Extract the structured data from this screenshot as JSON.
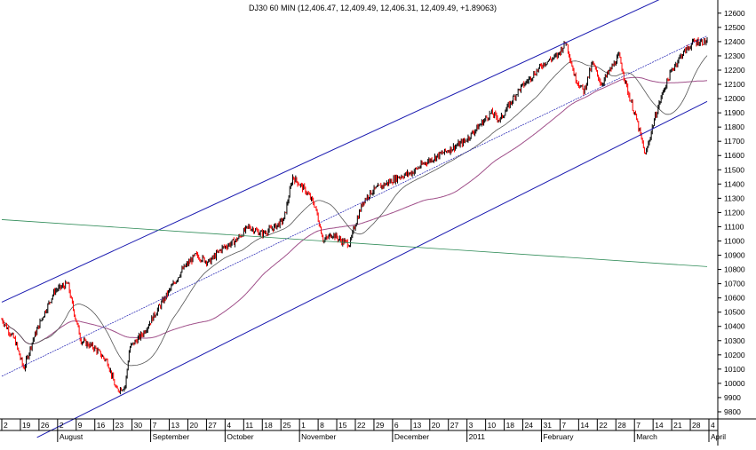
{
  "chart_data": {
    "type": "line",
    "subtype": "candlestick-price-with-channel",
    "title": "DJ30 60 MIN (12,406.47, 12,409.49, 12,406.31, 12,409.49, +1.89063)",
    "ylim": [
      9750,
      12680
    ],
    "y_ticks": [
      9800,
      9900,
      10000,
      10100,
      10200,
      10300,
      10400,
      10500,
      10600,
      10700,
      10800,
      10900,
      11000,
      11100,
      11200,
      11300,
      11400,
      11500,
      11600,
      11700,
      11800,
      11900,
      12000,
      12100,
      12200,
      12300,
      12400,
      12500,
      12600
    ],
    "x_day_ticks": [
      "2",
      "19",
      "26",
      "2",
      "9",
      "16",
      "23",
      "30",
      "7",
      "13",
      "20",
      "27",
      "4",
      "11",
      "18",
      "25",
      "1",
      "8",
      "15",
      "22",
      "29",
      "6",
      "13",
      "20",
      "27",
      "3",
      "10",
      "18",
      "24",
      "31",
      "7",
      "14",
      "22",
      "28",
      "7",
      "14",
      "21",
      "28",
      "4"
    ],
    "x_month_labels": [
      "August",
      "September",
      "October",
      "November",
      "December",
      "2011",
      "February",
      "March",
      "April"
    ],
    "grid": false,
    "colors": {
      "price_up": "#000000",
      "price_down": "#ff0000",
      "channel": "#1a1ab0",
      "ma_short": "#555555",
      "ma_long": "#a0508a",
      "horizontal_ref": "#2e8b57"
    },
    "price_anchors": [
      {
        "t": 0,
        "v": 10450
      },
      {
        "t": 3,
        "v": 10300
      },
      {
        "t": 5,
        "v": 10100
      },
      {
        "t": 7,
        "v": 10300
      },
      {
        "t": 9,
        "v": 10450
      },
      {
        "t": 12,
        "v": 10650
      },
      {
        "t": 15,
        "v": 10700
      },
      {
        "t": 16,
        "v": 10550
      },
      {
        "t": 18,
        "v": 10300
      },
      {
        "t": 21,
        "v": 10250
      },
      {
        "t": 24,
        "v": 10150
      },
      {
        "t": 26,
        "v": 9950
      },
      {
        "t": 28,
        "v": 9980
      },
      {
        "t": 29,
        "v": 10250
      },
      {
        "t": 32,
        "v": 10350
      },
      {
        "t": 35,
        "v": 10500
      },
      {
        "t": 38,
        "v": 10650
      },
      {
        "t": 41,
        "v": 10800
      },
      {
        "t": 44,
        "v": 10900
      },
      {
        "t": 47,
        "v": 10850
      },
      {
        "t": 50,
        "v": 10950
      },
      {
        "t": 53,
        "v": 11000
      },
      {
        "t": 56,
        "v": 11100
      },
      {
        "t": 59,
        "v": 11050
      },
      {
        "t": 62,
        "v": 11100
      },
      {
        "t": 64,
        "v": 11150
      },
      {
        "t": 66,
        "v": 11450
      },
      {
        "t": 69,
        "v": 11350
      },
      {
        "t": 71,
        "v": 11250
      },
      {
        "t": 73,
        "v": 11000
      },
      {
        "t": 75,
        "v": 11050
      },
      {
        "t": 77,
        "v": 11000
      },
      {
        "t": 79,
        "v": 10980
      },
      {
        "t": 80,
        "v": 11100
      },
      {
        "t": 82,
        "v": 11280
      },
      {
        "t": 84,
        "v": 11350
      },
      {
        "t": 87,
        "v": 11400
      },
      {
        "t": 90,
        "v": 11450
      },
      {
        "t": 93,
        "v": 11480
      },
      {
        "t": 96,
        "v": 11550
      },
      {
        "t": 99,
        "v": 11600
      },
      {
        "t": 102,
        "v": 11650
      },
      {
        "t": 105,
        "v": 11700
      },
      {
        "t": 108,
        "v": 11800
      },
      {
        "t": 111,
        "v": 11900
      },
      {
        "t": 113,
        "v": 11850
      },
      {
        "t": 115,
        "v": 11950
      },
      {
        "t": 117,
        "v": 12050
      },
      {
        "t": 120,
        "v": 12150
      },
      {
        "t": 123,
        "v": 12250
      },
      {
        "t": 126,
        "v": 12300
      },
      {
        "t": 128,
        "v": 12400
      },
      {
        "t": 130,
        "v": 12150
      },
      {
        "t": 132,
        "v": 12050
      },
      {
        "t": 134,
        "v": 12250
      },
      {
        "t": 136,
        "v": 12100
      },
      {
        "t": 138,
        "v": 12200
      },
      {
        "t": 140,
        "v": 12300
      },
      {
        "t": 142,
        "v": 12050
      },
      {
        "t": 144,
        "v": 11850
      },
      {
        "t": 146,
        "v": 11600
      },
      {
        "t": 148,
        "v": 11850
      },
      {
        "t": 150,
        "v": 12050
      },
      {
        "t": 152,
        "v": 12200
      },
      {
        "t": 154,
        "v": 12300
      },
      {
        "t": 157,
        "v": 12400
      },
      {
        "t": 160,
        "v": 12400
      }
    ]
  }
}
